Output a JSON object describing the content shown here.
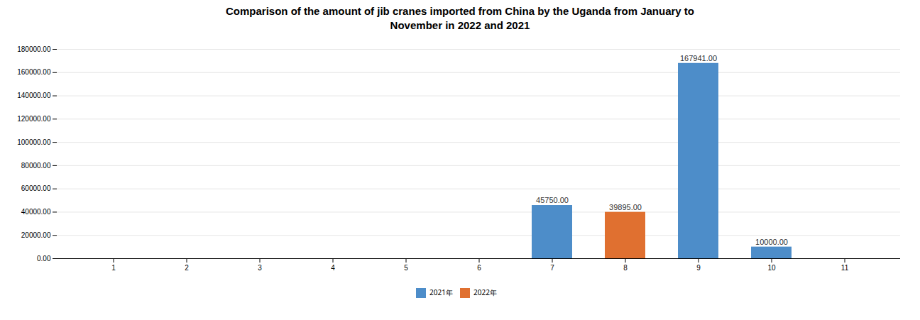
{
  "chart_data": {
    "type": "bar",
    "title": "Comparison of the amount of jib cranes imported from China by the Uganda from January to\nNovember in 2022 and 2021",
    "categories": [
      "1",
      "2",
      "3",
      "4",
      "5",
      "6",
      "7",
      "8",
      "9",
      "10",
      "11"
    ],
    "series": [
      {
        "name": "2021年",
        "color": "#4D8DC9",
        "values": [
          0,
          0,
          0,
          0,
          0,
          0,
          45750.0,
          0,
          167941.0,
          10000.0,
          0
        ],
        "value_labels": [
          null,
          null,
          null,
          null,
          null,
          null,
          "45750.00",
          null,
          "167941.00",
          "10000.00",
          null
        ]
      },
      {
        "name": "2022年",
        "color": "#E07030",
        "values": [
          0,
          0,
          0,
          0,
          0,
          0,
          0,
          39895.0,
          0,
          0,
          0
        ],
        "value_labels": [
          null,
          null,
          null,
          null,
          null,
          null,
          null,
          "39895.00",
          null,
          null,
          null
        ]
      }
    ],
    "ylim": [
      0,
      180000
    ],
    "yticks": [
      {
        "value": 0,
        "label": "0.00"
      },
      {
        "value": 20000,
        "label": "20000.00"
      },
      {
        "value": 40000,
        "label": "40000.00"
      },
      {
        "value": 60000,
        "label": "60000.00"
      },
      {
        "value": 80000,
        "label": "80000.00"
      },
      {
        "value": 100000,
        "label": "100000.00"
      },
      {
        "value": 120000,
        "label": "120000.00"
      },
      {
        "value": 140000,
        "label": "140000.00"
      },
      {
        "value": 160000,
        "label": "160000.00"
      },
      {
        "value": 180000,
        "label": "180000.00"
      }
    ],
    "grid": true,
    "legend": "bottom",
    "data_labels": true
  }
}
